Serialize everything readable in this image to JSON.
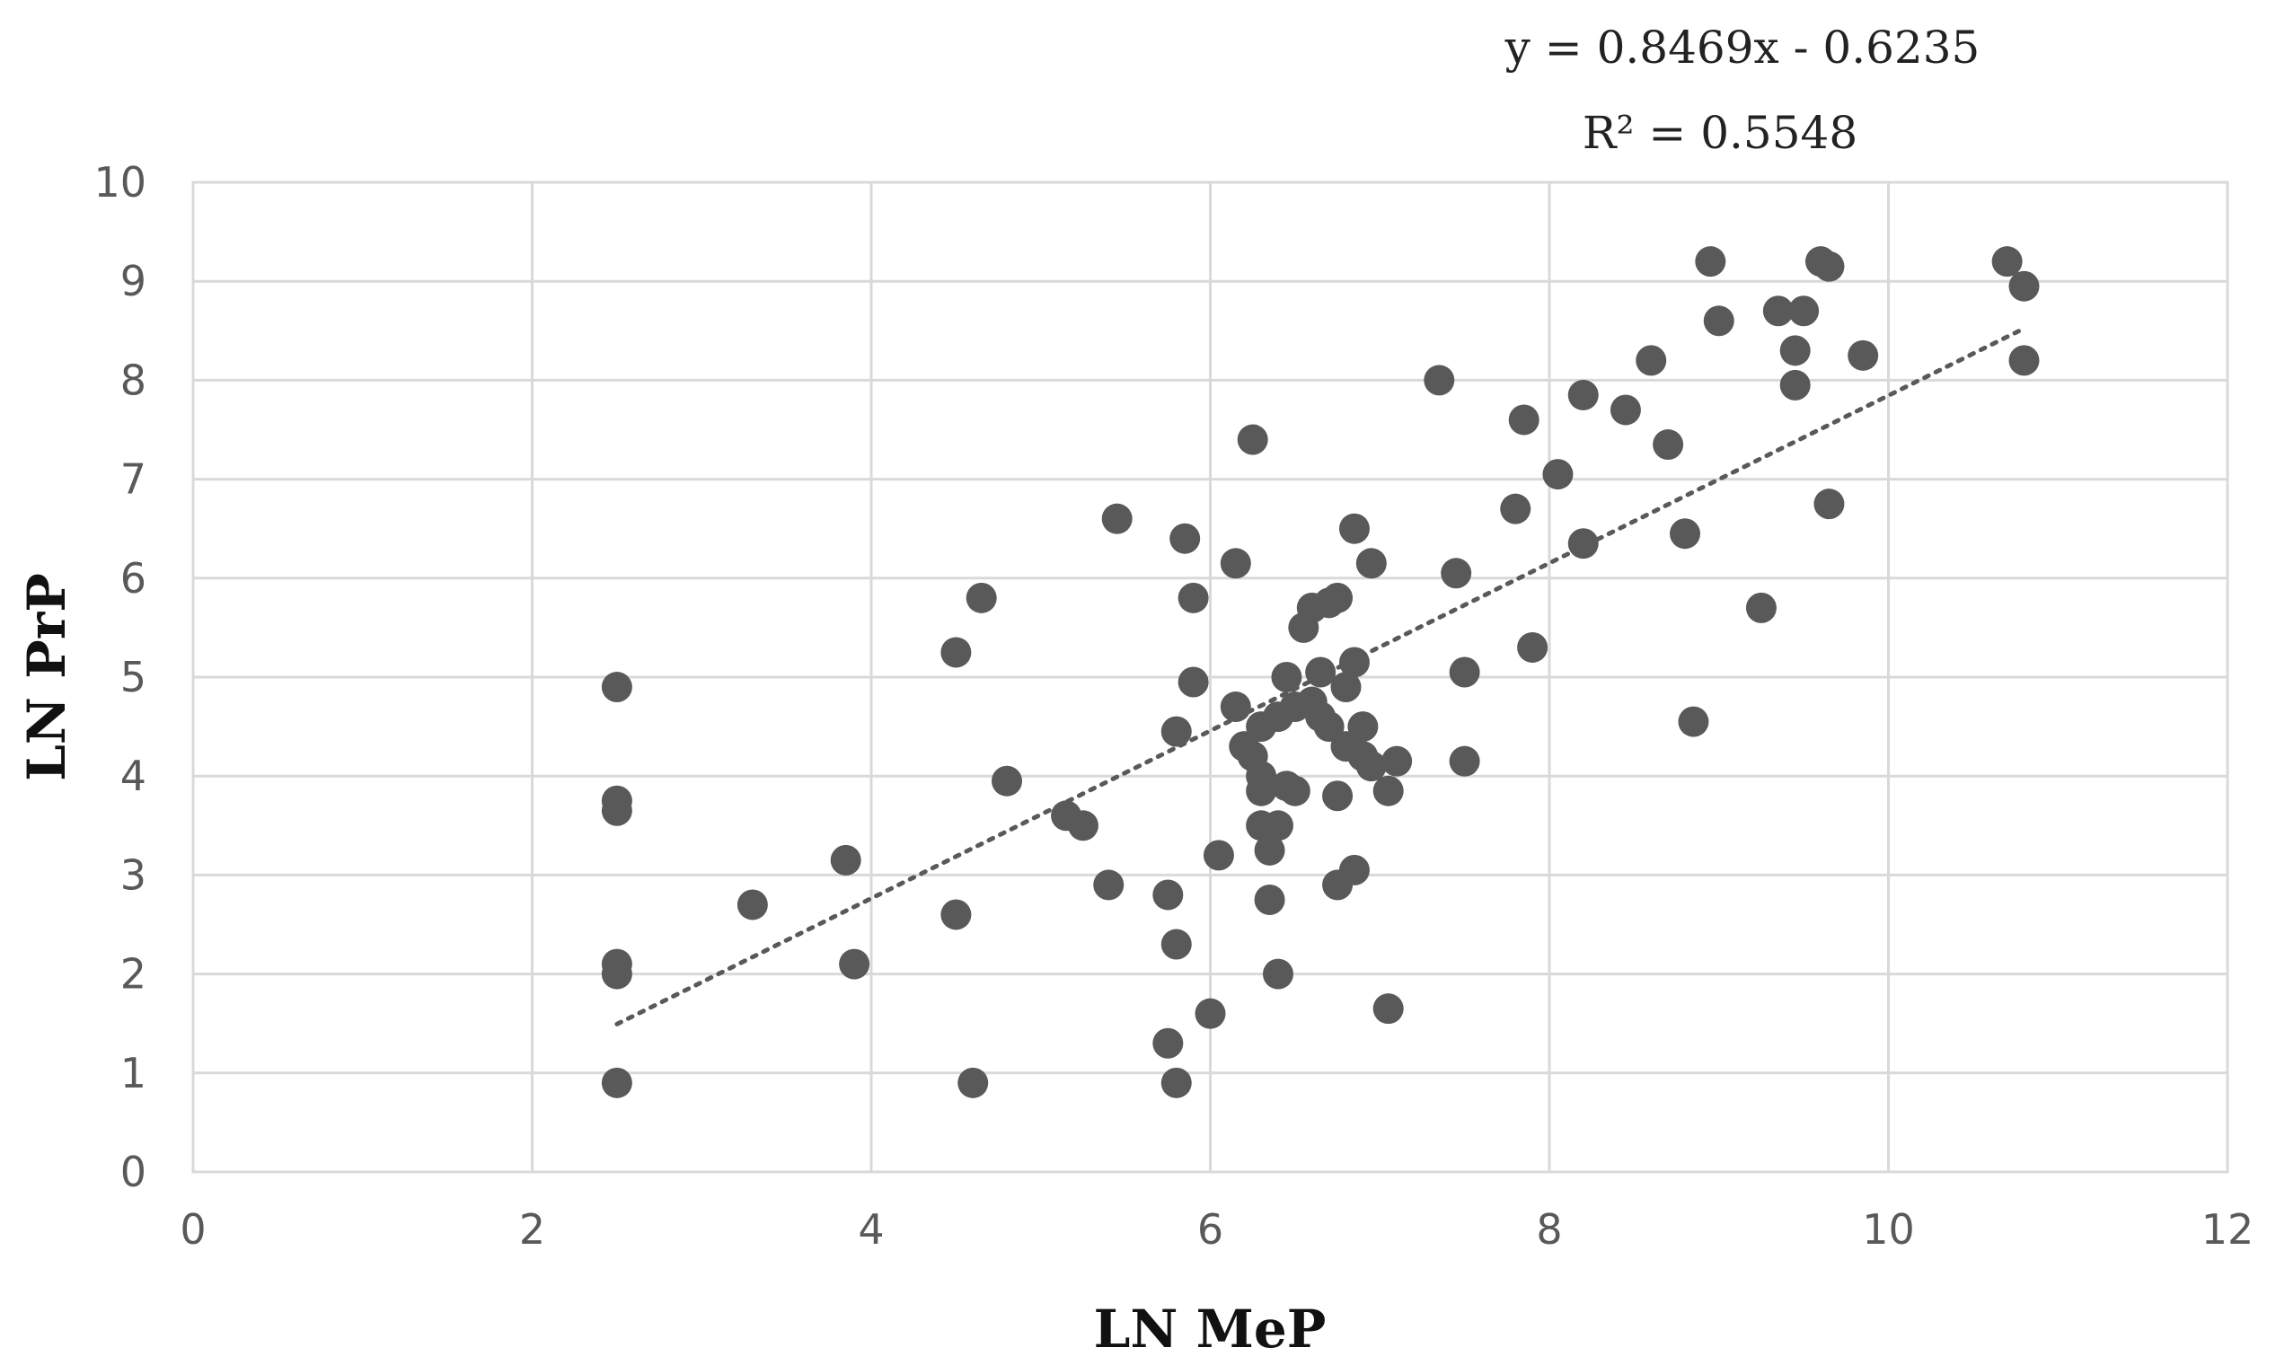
{
  "chart_data": {
    "type": "scatter",
    "xlabel": "LN MeP",
    "ylabel": "LN PrP",
    "xlim": [
      0,
      12
    ],
    "ylim": [
      0,
      10
    ],
    "xticks": [
      "0",
      "2",
      "4",
      "6",
      "8",
      "10",
      "12"
    ],
    "yticks": [
      "0",
      "1",
      "2",
      "3",
      "4",
      "5",
      "6",
      "7",
      "8",
      "9",
      "10"
    ],
    "grid": true,
    "marker_color": "#595959",
    "trendline": {
      "style": "dotted",
      "slope": 0.8469,
      "intercept": -0.6235,
      "x_range": [
        2.5,
        10.8
      ],
      "equation": "y = 0.8469x - 0.6235",
      "r2": "R² = 0.5548"
    },
    "points": [
      {
        "x": 2.5,
        "y": 4.9
      },
      {
        "x": 2.5,
        "y": 3.75
      },
      {
        "x": 2.5,
        "y": 3.65
      },
      {
        "x": 2.5,
        "y": 2.1
      },
      {
        "x": 2.5,
        "y": 2.0
      },
      {
        "x": 2.5,
        "y": 0.9
      },
      {
        "x": 3.3,
        "y": 2.7
      },
      {
        "x": 3.85,
        "y": 3.15
      },
      {
        "x": 3.9,
        "y": 2.1
      },
      {
        "x": 4.5,
        "y": 5.25
      },
      {
        "x": 4.5,
        "y": 2.6
      },
      {
        "x": 4.6,
        "y": 0.9
      },
      {
        "x": 4.65,
        "y": 5.8
      },
      {
        "x": 4.8,
        "y": 3.95
      },
      {
        "x": 5.15,
        "y": 3.6
      },
      {
        "x": 5.25,
        "y": 3.5
      },
      {
        "x": 5.4,
        "y": 2.9
      },
      {
        "x": 5.45,
        "y": 6.6
      },
      {
        "x": 5.75,
        "y": 2.8
      },
      {
        "x": 5.75,
        "y": 1.3
      },
      {
        "x": 5.8,
        "y": 4.45
      },
      {
        "x": 5.8,
        "y": 2.3
      },
      {
        "x": 5.8,
        "y": 0.9
      },
      {
        "x": 5.85,
        "y": 6.4
      },
      {
        "x": 5.9,
        "y": 5.8
      },
      {
        "x": 5.9,
        "y": 4.95
      },
      {
        "x": 6.0,
        "y": 1.6
      },
      {
        "x": 6.05,
        "y": 3.2
      },
      {
        "x": 6.15,
        "y": 6.15
      },
      {
        "x": 6.15,
        "y": 4.7
      },
      {
        "x": 6.2,
        "y": 4.3
      },
      {
        "x": 6.25,
        "y": 7.4
      },
      {
        "x": 6.25,
        "y": 4.2
      },
      {
        "x": 6.3,
        "y": 4.5
      },
      {
        "x": 6.3,
        "y": 4.0
      },
      {
        "x": 6.3,
        "y": 3.85
      },
      {
        "x": 6.3,
        "y": 3.5
      },
      {
        "x": 6.35,
        "y": 3.25
      },
      {
        "x": 6.35,
        "y": 2.75
      },
      {
        "x": 6.4,
        "y": 4.6
      },
      {
        "x": 6.4,
        "y": 3.5
      },
      {
        "x": 6.4,
        "y": 2.0
      },
      {
        "x": 6.45,
        "y": 5.0
      },
      {
        "x": 6.45,
        "y": 3.9
      },
      {
        "x": 6.5,
        "y": 4.7
      },
      {
        "x": 6.5,
        "y": 3.85
      },
      {
        "x": 6.55,
        "y": 5.5
      },
      {
        "x": 6.6,
        "y": 5.7
      },
      {
        "x": 6.6,
        "y": 4.75
      },
      {
        "x": 6.65,
        "y": 5.05
      },
      {
        "x": 6.65,
        "y": 4.6
      },
      {
        "x": 6.7,
        "y": 5.75
      },
      {
        "x": 6.7,
        "y": 4.5
      },
      {
        "x": 6.75,
        "y": 5.8
      },
      {
        "x": 6.75,
        "y": 3.8
      },
      {
        "x": 6.75,
        "y": 2.9
      },
      {
        "x": 6.8,
        "y": 4.9
      },
      {
        "x": 6.8,
        "y": 4.3
      },
      {
        "x": 6.85,
        "y": 6.5
      },
      {
        "x": 6.85,
        "y": 5.15
      },
      {
        "x": 6.85,
        "y": 3.05
      },
      {
        "x": 6.9,
        "y": 4.5
      },
      {
        "x": 6.9,
        "y": 4.2
      },
      {
        "x": 6.95,
        "y": 6.15
      },
      {
        "x": 6.95,
        "y": 4.1
      },
      {
        "x": 7.05,
        "y": 3.85
      },
      {
        "x": 7.05,
        "y": 1.65
      },
      {
        "x": 7.1,
        "y": 4.15
      },
      {
        "x": 7.35,
        "y": 8.0
      },
      {
        "x": 7.45,
        "y": 6.05
      },
      {
        "x": 7.5,
        "y": 5.05
      },
      {
        "x": 7.5,
        "y": 4.15
      },
      {
        "x": 7.8,
        "y": 6.7
      },
      {
        "x": 7.85,
        "y": 7.6
      },
      {
        "x": 7.9,
        "y": 5.3
      },
      {
        "x": 8.05,
        "y": 7.05
      },
      {
        "x": 8.2,
        "y": 6.35
      },
      {
        "x": 8.2,
        "y": 7.85
      },
      {
        "x": 8.45,
        "y": 7.7
      },
      {
        "x": 8.6,
        "y": 8.2
      },
      {
        "x": 8.7,
        "y": 7.35
      },
      {
        "x": 8.8,
        "y": 6.45
      },
      {
        "x": 8.85,
        "y": 4.55
      },
      {
        "x": 8.95,
        "y": 9.2
      },
      {
        "x": 9.0,
        "y": 8.6
      },
      {
        "x": 9.25,
        "y": 5.7
      },
      {
        "x": 9.35,
        "y": 8.7
      },
      {
        "x": 9.45,
        "y": 8.3
      },
      {
        "x": 9.45,
        "y": 7.95
      },
      {
        "x": 9.5,
        "y": 8.7
      },
      {
        "x": 9.6,
        "y": 9.2
      },
      {
        "x": 9.65,
        "y": 9.15
      },
      {
        "x": 9.65,
        "y": 6.75
      },
      {
        "x": 9.85,
        "y": 8.25
      },
      {
        "x": 10.7,
        "y": 9.2
      },
      {
        "x": 10.8,
        "y": 8.95
      },
      {
        "x": 10.8,
        "y": 8.2
      }
    ]
  }
}
